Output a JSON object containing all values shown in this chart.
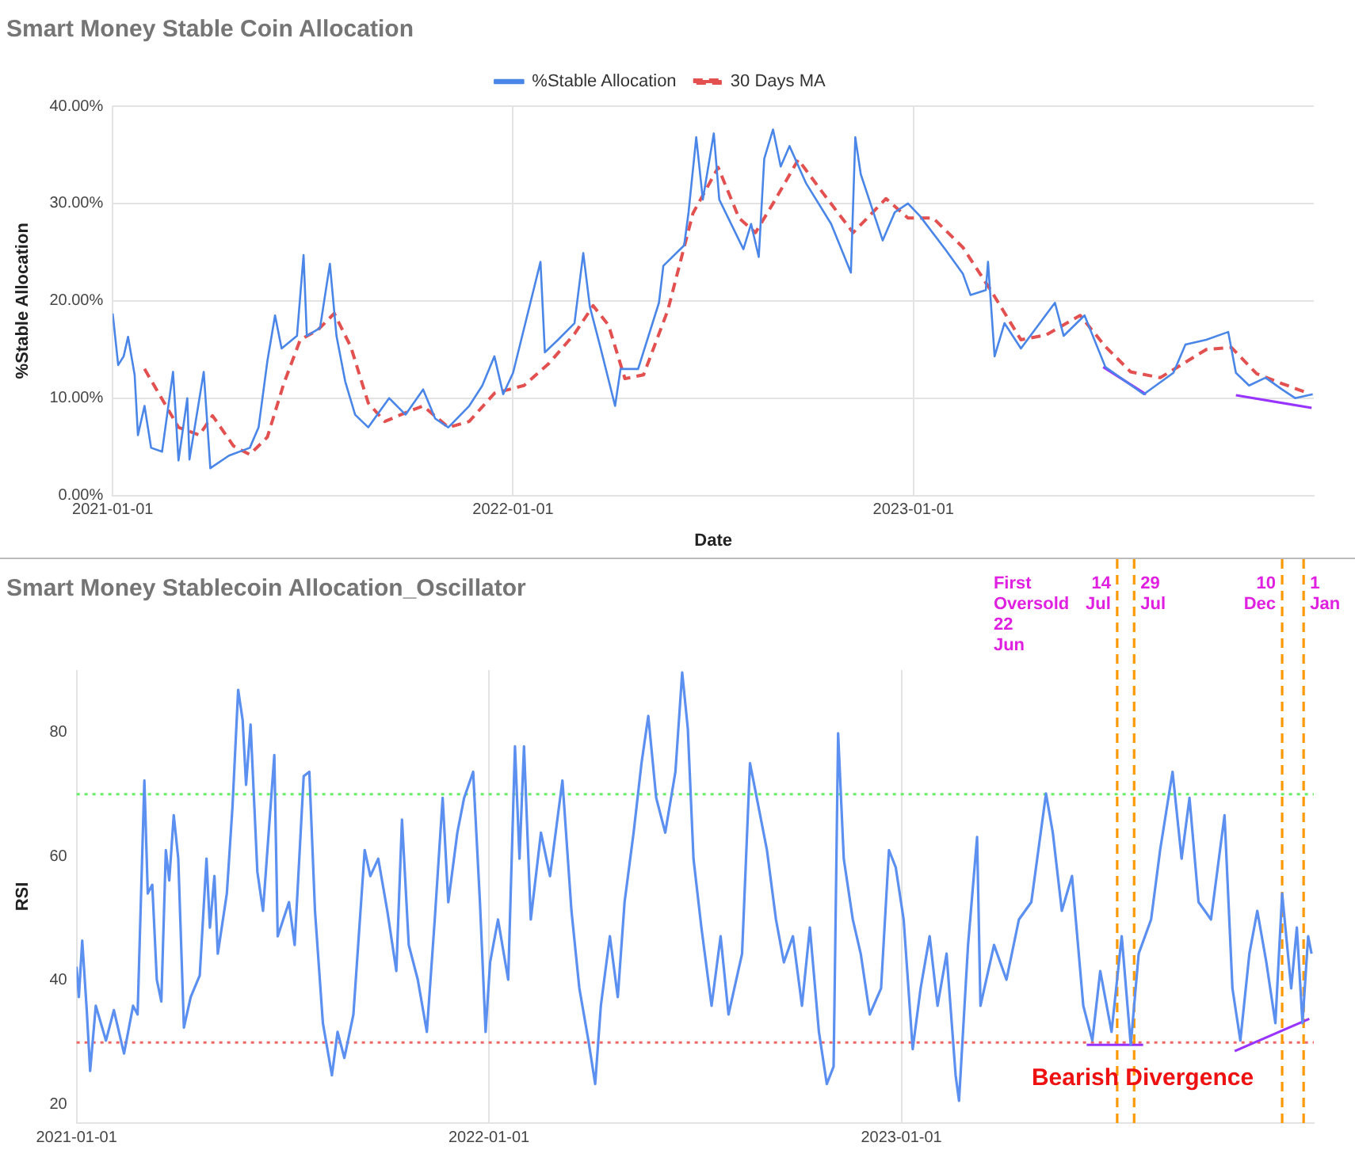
{
  "chart_data": [
    {
      "type": "line",
      "title": "Smart Money Stable Coin Allocation",
      "xlabel": "Date",
      "ylabel": "%Stable Allocation",
      "xlim": [
        "2021-01-01",
        "2024-01-01"
      ],
      "xticks": [
        "2021-01-01",
        "2022-01-01",
        "2023-01-01"
      ],
      "ylim": [
        0,
        40
      ],
      "yticks": [
        {
          "value": 0,
          "label": "0.00%"
        },
        {
          "value": 10,
          "label": "10.00%"
        },
        {
          "value": 20,
          "label": "20.00%"
        },
        {
          "value": 30,
          "label": "30.00%"
        },
        {
          "value": 40,
          "label": "40.00%"
        }
      ],
      "grid": true,
      "legend": "top",
      "marker": "none",
      "series": [
        {
          "name": "%Stable Allocation",
          "color": "#4a86e8",
          "x": [
            "2021-01-01",
            "2021-01-06",
            "2021-01-11",
            "2021-01-15",
            "2021-01-21",
            "2021-01-24",
            "2021-01-30",
            "2021-02-05",
            "2021-02-15",
            "2021-02-25",
            "2021-03-02",
            "2021-03-10",
            "2021-03-12",
            "2021-03-25",
            "2021-03-31",
            "2021-04-17",
            "2021-05-06",
            "2021-05-14",
            "2021-05-22",
            "2021-05-29",
            "2021-06-04",
            "2021-06-18",
            "2021-06-24",
            "2021-06-27",
            "2021-07-09",
            "2021-07-18",
            "2021-07-24",
            "2021-08-01",
            "2021-08-10",
            "2021-08-22",
            "2021-09-10",
            "2021-09-25",
            "2021-10-11",
            "2021-10-22",
            "2021-11-03",
            "2021-11-22",
            "2021-12-04",
            "2021-12-15",
            "2021-12-23",
            "2022-01-01",
            "2022-01-26",
            "2022-01-30",
            "2022-02-11",
            "2022-02-26",
            "2022-03-06",
            "2022-03-12",
            "2022-03-21",
            "2022-04-04",
            "2022-04-09",
            "2022-04-25",
            "2022-05-14",
            "2022-05-18",
            "2022-06-06",
            "2022-06-10",
            "2022-06-17",
            "2022-06-23",
            "2022-07-03",
            "2022-07-08",
            "2022-07-30",
            "2022-08-06",
            "2022-08-13",
            "2022-08-18",
            "2022-08-26",
            "2022-09-02",
            "2022-09-10",
            "2022-09-25",
            "2022-10-18",
            "2022-11-05",
            "2022-11-09",
            "2022-11-14",
            "2022-12-04",
            "2022-12-15",
            "2022-12-27",
            "2023-01-07",
            "2023-01-30",
            "2023-02-15",
            "2023-02-22",
            "2023-03-08",
            "2023-03-10",
            "2023-03-16",
            "2023-03-25",
            "2023-04-09",
            "2023-05-10",
            "2023-05-18",
            "2023-06-06",
            "2023-06-25",
            "2023-07-30",
            "2023-08-26",
            "2023-09-06",
            "2023-09-25",
            "2023-10-15",
            "2023-10-22",
            "2023-11-03",
            "2023-11-18",
            "2023-12-03",
            "2023-12-15",
            "2023-12-31"
          ],
          "values": [
            18.7,
            13.4,
            14.3,
            16.3,
            12.4,
            6.2,
            9.2,
            4.9,
            4.5,
            12.7,
            3.6,
            10.0,
            3.7,
            12.7,
            2.8,
            4.1,
            4.9,
            7.0,
            13.8,
            18.5,
            15.1,
            16.4,
            24.7,
            16.4,
            17.2,
            23.8,
            16.4,
            11.7,
            8.3,
            7.0,
            10.0,
            8.3,
            10.9,
            7.9,
            7.0,
            9.2,
            11.3,
            14.3,
            10.4,
            12.6,
            24.0,
            14.7,
            16.0,
            17.7,
            24.9,
            19.4,
            15.5,
            9.2,
            13.0,
            13.0,
            19.8,
            23.6,
            25.7,
            29.1,
            36.8,
            30.4,
            37.2,
            30.4,
            25.3,
            27.9,
            24.5,
            34.6,
            37.6,
            33.8,
            35.9,
            32.1,
            27.9,
            22.9,
            36.8,
            33.0,
            26.2,
            29.1,
            30.0,
            28.7,
            25.3,
            22.8,
            20.6,
            21.1,
            24.0,
            14.3,
            17.7,
            15.1,
            19.8,
            16.4,
            18.5,
            13.2,
            10.4,
            12.6,
            15.5,
            16.0,
            16.8,
            12.6,
            11.3,
            12.1,
            10.9,
            10.0,
            10.4
          ]
        },
        {
          "name": "30 Days MA",
          "color": "#e35050",
          "line_style": "dashed",
          "x": [
            "2021-01-30",
            "2021-03-02",
            "2021-03-21",
            "2021-04-02",
            "2021-04-21",
            "2021-05-06",
            "2021-05-22",
            "2021-06-06",
            "2021-06-21",
            "2021-07-07",
            "2021-07-22",
            "2021-08-06",
            "2021-08-22",
            "2021-09-06",
            "2021-09-25",
            "2021-10-11",
            "2021-11-03",
            "2021-11-22",
            "2021-12-15",
            "2022-01-11",
            "2022-02-03",
            "2022-02-26",
            "2022-03-15",
            "2022-03-29",
            "2022-04-13",
            "2022-04-30",
            "2022-05-22",
            "2022-06-14",
            "2022-07-07",
            "2022-07-26",
            "2022-08-10",
            "2022-08-26",
            "2022-09-18",
            "2022-10-11",
            "2022-11-07",
            "2022-12-07",
            "2022-12-27",
            "2023-01-19",
            "2023-02-15",
            "2023-03-13",
            "2023-04-09",
            "2023-05-02",
            "2023-06-02",
            "2023-06-25",
            "2023-07-18",
            "2023-08-14",
            "2023-09-25",
            "2023-10-18",
            "2023-11-10",
            "2023-12-03",
            "2023-12-27"
          ],
          "values": [
            13.0,
            7.0,
            6.2,
            8.2,
            5.1,
            4.2,
            6.0,
            11.5,
            16.0,
            17.0,
            18.7,
            15.3,
            9.5,
            7.6,
            8.5,
            9.2,
            7.0,
            7.6,
            10.5,
            11.3,
            13.6,
            16.6,
            19.5,
            17.5,
            12.0,
            12.4,
            19.0,
            29.0,
            33.7,
            28.5,
            27.0,
            30.0,
            34.5,
            31.0,
            27.0,
            30.5,
            28.5,
            28.5,
            25.5,
            21.0,
            16.0,
            16.5,
            18.5,
            15.3,
            12.7,
            12.1,
            15.0,
            15.2,
            12.5,
            11.5,
            10.5
          ]
        },
        {
          "color": "#9933ff",
          "x": [
            "2023-06-23",
            "2023-08-01"
          ],
          "values": [
            13.2,
            10.4
          ]
        },
        {
          "color": "#9933ff",
          "x": [
            "2023-10-22",
            "2023-12-30"
          ],
          "values": [
            10.3,
            9.0
          ]
        }
      ]
    },
    {
      "type": "line",
      "title": "Smart Money Stablecoin Allocation_Oscillator",
      "ylabel": "RSI",
      "xlim": [
        "2021-01-01",
        "2024-01-01"
      ],
      "xticks": [
        "2021-01-01",
        "2022-01-01",
        "2023-01-01"
      ],
      "ylim": [
        17,
        90
      ],
      "yticks": [
        20,
        40,
        60,
        80
      ],
      "grid": "x",
      "marker": "none",
      "series": [
        {
          "color": "#5b8ff0",
          "x": [
            "2021-01-01",
            "2021-01-03",
            "2021-01-06",
            "2021-01-10",
            "2021-01-13",
            "2021-01-18",
            "2021-01-27",
            "2021-02-03",
            "2021-02-12",
            "2021-02-20",
            "2021-02-24",
            "2021-03-02",
            "2021-03-05",
            "2021-03-09",
            "2021-03-13",
            "2021-03-17",
            "2021-03-21",
            "2021-03-24",
            "2021-03-28",
            "2021-04-01",
            "2021-04-06",
            "2021-04-12",
            "2021-04-20",
            "2021-04-26",
            "2021-04-29",
            "2021-05-03",
            "2021-05-06",
            "2021-05-14",
            "2021-05-19",
            "2021-05-24",
            "2021-05-28",
            "2021-05-31",
            "2021-06-04",
            "2021-06-10",
            "2021-06-15",
            "2021-06-25",
            "2021-06-28",
            "2021-07-08",
            "2021-07-13",
            "2021-07-21",
            "2021-07-26",
            "2021-07-31",
            "2021-08-07",
            "2021-08-15",
            "2021-08-20",
            "2021-08-26",
            "2021-09-03",
            "2021-09-13",
            "2021-09-18",
            "2021-09-25",
            "2021-10-03",
            "2021-10-11",
            "2021-10-16",
            "2021-10-22",
            "2021-10-30",
            "2021-11-07",
            "2021-11-14",
            "2021-11-21",
            "2021-11-26",
            "2021-12-04",
            "2021-12-10",
            "2021-12-18",
            "2021-12-24",
            "2021-12-29",
            "2022-01-02",
            "2022-01-09",
            "2022-01-18",
            "2022-01-24",
            "2022-01-28",
            "2022-02-01",
            "2022-02-07",
            "2022-02-16",
            "2022-02-24",
            "2022-03-07",
            "2022-03-15",
            "2022-03-22",
            "2022-03-30",
            "2022-04-05",
            "2022-04-10",
            "2022-04-18",
            "2022-04-25",
            "2022-05-01",
            "2022-05-09",
            "2022-05-16",
            "2022-05-22",
            "2022-05-29",
            "2022-06-06",
            "2022-06-15",
            "2022-06-21",
            "2022-06-26",
            "2022-07-01",
            "2022-07-08",
            "2022-07-17",
            "2022-07-25",
            "2022-08-01",
            "2022-08-13",
            "2022-08-20",
            "2022-08-26",
            "2022-09-01",
            "2022-09-04",
            "2022-09-12",
            "2022-09-19",
            "2022-09-27",
            "2022-10-05",
            "2022-10-12",
            "2022-10-20",
            "2022-10-27",
            "2022-11-02",
            "2022-11-06",
            "2022-11-11",
            "2022-11-19",
            "2022-11-26",
            "2022-12-04",
            "2022-12-14",
            "2022-12-21",
            "2022-12-27",
            "2023-01-03",
            "2023-01-11",
            "2023-01-18",
            "2023-01-26",
            "2023-02-02",
            "2023-02-10",
            "2023-02-18",
            "2023-02-21",
            "2023-03-01",
            "2023-03-09",
            "2023-03-12",
            "2023-03-24",
            "2023-04-04",
            "2023-04-15",
            "2023-04-26",
            "2023-05-09",
            "2023-05-15",
            "2023-05-23",
            "2023-06-01",
            "2023-06-11",
            "2023-06-19",
            "2023-06-26",
            "2023-07-06",
            "2023-07-15",
            "2023-07-23",
            "2023-07-30",
            "2023-08-10",
            "2023-08-18",
            "2023-08-29",
            "2023-09-06",
            "2023-09-13",
            "2023-09-21",
            "2023-10-02",
            "2023-10-14",
            "2023-10-21",
            "2023-10-28",
            "2023-11-05",
            "2023-11-12",
            "2023-11-20",
            "2023-11-28",
            "2023-12-04",
            "2023-12-12",
            "2023-12-17",
            "2023-12-22",
            "2023-12-27",
            "2023-12-30"
          ],
          "values": [
            42.2,
            37.3,
            46.4,
            35.2,
            25.4,
            35.9,
            30.3,
            35.2,
            28.2,
            35.9,
            34.5,
            72.2,
            54.0,
            55.4,
            40.1,
            36.6,
            61.0,
            56.1,
            66.6,
            59.6,
            32.4,
            37.3,
            40.8,
            59.6,
            48.5,
            56.8,
            44.3,
            54.0,
            68.0,
            86.8,
            81.9,
            71.5,
            81.2,
            57.5,
            51.2,
            76.3,
            47.1,
            52.6,
            45.7,
            72.9,
            73.6,
            51.2,
            33.1,
            24.7,
            31.7,
            27.5,
            34.5,
            61.0,
            56.8,
            59.6,
            51.2,
            41.5,
            65.9,
            45.7,
            40.1,
            31.7,
            49.8,
            69.4,
            52.6,
            63.8,
            69.4,
            73.6,
            52.6,
            31.7,
            42.9,
            49.8,
            40.1,
            77.7,
            59.6,
            77.7,
            49.8,
            63.8,
            56.8,
            72.2,
            51.2,
            38.7,
            30.3,
            23.3,
            35.9,
            47.1,
            37.3,
            52.6,
            63.8,
            75.0,
            82.6,
            69.4,
            63.8,
            73.6,
            89.6,
            80.5,
            59.6,
            48.5,
            35.9,
            47.1,
            34.5,
            44.3,
            75.0,
            69.4,
            63.8,
            61.0,
            49.8,
            42.9,
            47.1,
            35.9,
            48.5,
            31.7,
            23.3,
            26.1,
            79.8,
            59.6,
            49.8,
            44.3,
            34.5,
            38.7,
            61.0,
            58.2,
            49.8,
            28.9,
            38.7,
            47.1,
            35.9,
            44.3,
            24.7,
            20.6,
            45.7,
            63.1,
            35.9,
            45.7,
            40.1,
            49.8,
            52.6,
            70.1,
            63.8,
            51.2,
            56.8,
            35.9,
            30.3,
            41.5,
            31.7,
            47.1,
            29.6,
            44.3,
            49.8,
            61.0,
            73.6,
            59.6,
            69.4,
            52.6,
            49.8,
            66.6,
            38.7,
            30.3,
            44.3,
            51.2,
            42.9,
            33.1,
            54.0,
            38.7,
            48.5,
            33.1,
            47.1,
            44.3
          ]
        },
        {
          "color": "#9933ff",
          "x": [
            "2023-06-14",
            "2023-08-03"
          ],
          "values": [
            29.6,
            29.6
          ]
        },
        {
          "color": "#9933ff",
          "x": [
            "2023-10-23",
            "2023-12-28"
          ],
          "values": [
            28.6,
            33.8
          ]
        }
      ],
      "ref_lines": [
        {
          "axis": "y",
          "value": 70,
          "color": "#66ee66",
          "line_style": "dotted"
        },
        {
          "axis": "y",
          "value": 30,
          "color": "#ee6666",
          "line_style": "dotted"
        },
        {
          "axis": "x",
          "value": "2023-07-11",
          "label": "14 Jul",
          "color": "#ff9900",
          "line_style": "dashed"
        },
        {
          "axis": "x",
          "value": "2023-07-26",
          "label": "29 Jul",
          "color": "#ff9900",
          "line_style": "dashed"
        },
        {
          "axis": "x",
          "value": "2023-12-04",
          "label": "10 Dec",
          "color": "#ff9900",
          "line_style": "dashed"
        },
        {
          "axis": "x",
          "value": "2023-12-23",
          "label": "1 Jan",
          "color": "#ff9900",
          "line_style": "dashed"
        }
      ],
      "annotations": [
        "First Oversold 22 Jun",
        "Bearish Divergence"
      ]
    }
  ]
}
